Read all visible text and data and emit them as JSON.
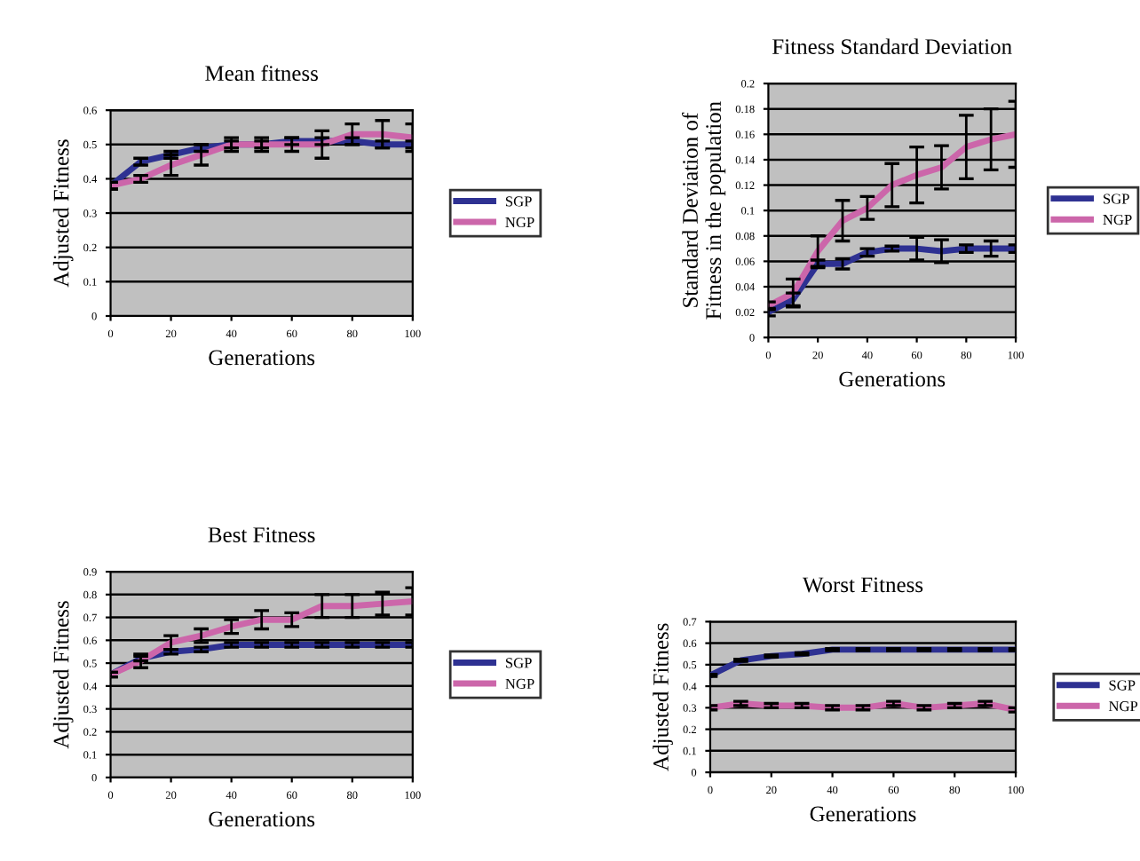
{
  "chart_data": [
    {
      "type": "line",
      "title": "Mean fitness",
      "xlabel": "Generations",
      "ylabel": "Adjusted Fitness",
      "x": [
        0,
        10,
        20,
        30,
        40,
        50,
        60,
        70,
        80,
        90,
        100
      ],
      "xlim": [
        0,
        100
      ],
      "xticks": [
        0,
        20,
        40,
        60,
        80,
        100
      ],
      "ylim": [
        0,
        0.6
      ],
      "yticks": [
        0,
        0.1,
        0.2,
        0.3,
        0.4,
        0.5,
        0.6
      ],
      "grid": "y",
      "legend": "right",
      "series": [
        {
          "name": "SGP",
          "color": "#2e3192",
          "values": [
            0.38,
            0.45,
            0.47,
            0.49,
            0.5,
            0.5,
            0.51,
            0.51,
            0.51,
            0.5,
            0.5
          ],
          "errors": [
            0.01,
            0.01,
            0.01,
            0.01,
            0.01,
            0.01,
            0.01,
            0.01,
            0.01,
            0.01,
            0.01
          ]
        },
        {
          "name": "NGP",
          "color": "#cc66aa",
          "values": [
            0.38,
            0.4,
            0.44,
            0.47,
            0.5,
            0.5,
            0.5,
            0.5,
            0.53,
            0.53,
            0.52
          ],
          "errors": [
            0.01,
            0.01,
            0.03,
            0.03,
            0.02,
            0.02,
            0.02,
            0.04,
            0.03,
            0.04,
            0.04
          ]
        }
      ]
    },
    {
      "type": "line",
      "title": "Fitness Standard Deviation",
      "xlabel": "Generations",
      "ylabel": "Standard Deviation of\nFitness in the population",
      "x": [
        0,
        10,
        20,
        30,
        40,
        50,
        60,
        70,
        80,
        90,
        100
      ],
      "xlim": [
        0,
        100
      ],
      "xticks": [
        0,
        20,
        40,
        60,
        80,
        100
      ],
      "ylim": [
        0,
        0.2
      ],
      "yticks": [
        0,
        0.02,
        0.04,
        0.06,
        0.08,
        0.1,
        0.12,
        0.14,
        0.16,
        0.18,
        0.2
      ],
      "grid": "y",
      "legend": "right",
      "series": [
        {
          "name": "SGP",
          "color": "#2e3192",
          "values": [
            0.02,
            0.03,
            0.058,
            0.058,
            0.067,
            0.07,
            0.07,
            0.068,
            0.07,
            0.07,
            0.07
          ],
          "errors": [
            0.003,
            0.005,
            0.003,
            0.004,
            0.003,
            0.002,
            0.009,
            0.009,
            0.003,
            0.006,
            0.003
          ]
        },
        {
          "name": "NGP",
          "color": "#cc66aa",
          "values": [
            0.025,
            0.035,
            0.068,
            0.092,
            0.102,
            0.12,
            0.128,
            0.134,
            0.15,
            0.156,
            0.16
          ],
          "errors": [
            0.003,
            0.011,
            0.012,
            0.016,
            0.009,
            0.017,
            0.022,
            0.017,
            0.025,
            0.024,
            0.026
          ]
        }
      ]
    },
    {
      "type": "line",
      "title": "Best Fitness",
      "xlabel": "Generations",
      "ylabel": "Adjusted Fitness",
      "x": [
        0,
        10,
        20,
        30,
        40,
        50,
        60,
        70,
        80,
        90,
        100
      ],
      "xlim": [
        0,
        100
      ],
      "xticks": [
        0,
        20,
        40,
        60,
        80,
        100
      ],
      "ylim": [
        0,
        0.9
      ],
      "yticks": [
        0,
        0.1,
        0.2,
        0.3,
        0.4,
        0.5,
        0.6,
        0.7,
        0.8,
        0.9
      ],
      "grid": "y",
      "legend": "right",
      "series": [
        {
          "name": "SGP",
          "color": "#2e3192",
          "values": [
            0.45,
            0.52,
            0.55,
            0.56,
            0.58,
            0.58,
            0.58,
            0.58,
            0.58,
            0.58,
            0.58
          ],
          "errors": [
            0.01,
            0.01,
            0.01,
            0.01,
            0.01,
            0.01,
            0.01,
            0.01,
            0.01,
            0.01,
            0.01
          ]
        },
        {
          "name": "NGP",
          "color": "#cc66aa",
          "values": [
            0.45,
            0.51,
            0.59,
            0.62,
            0.66,
            0.69,
            0.69,
            0.75,
            0.75,
            0.76,
            0.77
          ],
          "errors": [
            0.01,
            0.03,
            0.03,
            0.03,
            0.03,
            0.04,
            0.03,
            0.05,
            0.05,
            0.05,
            0.06
          ]
        }
      ]
    },
    {
      "type": "line",
      "title": "Worst Fitness",
      "xlabel": "Generations",
      "ylabel": "Adjusted Fitness",
      "x": [
        0,
        10,
        20,
        30,
        40,
        50,
        60,
        70,
        80,
        90,
        100
      ],
      "xlim": [
        0,
        100
      ],
      "xticks": [
        0,
        20,
        40,
        60,
        80,
        100
      ],
      "ylim": [
        0,
        0.7
      ],
      "yticks": [
        0,
        0.1,
        0.2,
        0.3,
        0.4,
        0.5,
        0.6,
        0.7
      ],
      "grid": "y",
      "legend": "right",
      "series": [
        {
          "name": "SGP",
          "color": "#2e3192",
          "values": [
            0.45,
            0.52,
            0.54,
            0.55,
            0.57,
            0.57,
            0.57,
            0.57,
            0.57,
            0.57,
            0.57
          ],
          "errors": [
            0.005,
            0.005,
            0.005,
            0.005,
            0.005,
            0.005,
            0.005,
            0.005,
            0.005,
            0.005,
            0.005
          ]
        },
        {
          "name": "NGP",
          "color": "#cc66aa",
          "values": [
            0.3,
            0.32,
            0.31,
            0.31,
            0.3,
            0.3,
            0.32,
            0.3,
            0.31,
            0.32,
            0.29
          ],
          "errors": [
            0.01,
            0.01,
            0.01,
            0.01,
            0.01,
            0.01,
            0.01,
            0.01,
            0.01,
            0.01,
            0.01
          ]
        }
      ]
    }
  ]
}
